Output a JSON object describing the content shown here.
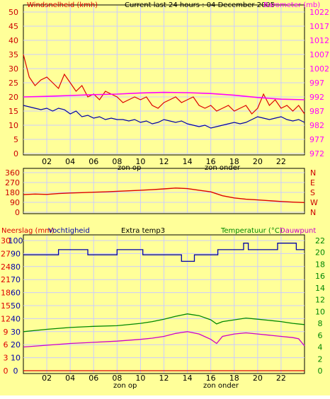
{
  "header": {
    "left_label": "Windsnelheid (kmh)",
    "center_label": "Current last 24 hours : 04 December 2005",
    "right_label": "Barometer (mb)"
  },
  "footer": {
    "zon_op": "zon op",
    "zon_onder": "zon onder"
  },
  "colors": {
    "background": "#ffff99",
    "grid": "#ccccff",
    "red": "#dd0000",
    "blue": "#0000aa",
    "magenta": "#ff00ff",
    "green": "#008800",
    "purple": "#cc00cc"
  },
  "chart_data": [
    {
      "id": "wind_barometer",
      "type": "line",
      "x": {
        "ticks": [
          "02",
          "04",
          "06",
          "08",
          "10",
          "12",
          "14",
          "16",
          "18",
          "20",
          "22"
        ],
        "range_hours": [
          0,
          24
        ]
      },
      "left_axis": {
        "label": "Windsnelheid (kmh)",
        "ticks": [
          0,
          5,
          10,
          15,
          20,
          25,
          30,
          35,
          40,
          45,
          50
        ],
        "range": [
          0,
          50
        ]
      },
      "right_axis": {
        "label": "Barometer (mb)",
        "ticks": [
          972,
          977,
          982,
          987,
          992,
          997,
          1002,
          1007,
          1012,
          1017,
          1022
        ],
        "range": [
          972,
          1022
        ]
      },
      "series": [
        {
          "color": "#dd0000",
          "axis": "left",
          "x": [
            0.0,
            0.5,
            1.0,
            1.5,
            2.0,
            2.5,
            3.0,
            3.5,
            4.0,
            4.5,
            5.0,
            5.5,
            6.0,
            6.5,
            7.0,
            7.5,
            8.0,
            8.5,
            9.0,
            9.5,
            10.0,
            10.5,
            11.0,
            11.5,
            12.0,
            12.5,
            13.0,
            13.5,
            14.0,
            14.5,
            15.0,
            15.5,
            16.0,
            16.5,
            17.0,
            17.5,
            18.0,
            18.5,
            19.0,
            19.5,
            20.0,
            20.5,
            21.0,
            21.5,
            22.0,
            22.5,
            23.0,
            23.5,
            24.0
          ],
          "values": [
            35,
            27,
            24,
            26,
            27,
            25,
            23,
            28,
            25,
            22,
            24,
            20,
            21,
            19,
            22,
            21,
            20,
            18,
            19,
            20,
            19,
            20,
            17,
            16,
            18,
            19,
            20,
            18,
            19,
            20,
            17,
            16,
            17,
            15,
            16,
            17,
            15,
            16,
            17,
            14,
            16,
            21,
            17,
            19,
            16,
            17,
            15,
            17,
            14
          ]
        },
        {
          "color": "#0000aa",
          "axis": "left",
          "x": [
            0.0,
            0.5,
            1.0,
            1.5,
            2.0,
            2.5,
            3.0,
            3.5,
            4.0,
            4.5,
            5.0,
            5.5,
            6.0,
            6.5,
            7.0,
            7.5,
            8.0,
            8.5,
            9.0,
            9.5,
            10.0,
            10.5,
            11.0,
            11.5,
            12.0,
            12.5,
            13.0,
            13.5,
            14.0,
            14.5,
            15.0,
            15.5,
            16.0,
            16.5,
            17.0,
            17.5,
            18.0,
            18.5,
            19.0,
            19.5,
            20.0,
            20.5,
            21.0,
            21.5,
            22.0,
            22.5,
            23.0,
            23.5,
            24.0
          ],
          "values": [
            17,
            16.5,
            16,
            15.5,
            16,
            15,
            16,
            15.5,
            14,
            15,
            13,
            13.5,
            12.5,
            13,
            12,
            12.5,
            12,
            12,
            11.5,
            12,
            11,
            11.5,
            10.5,
            11,
            12,
            11.5,
            11,
            11.5,
            10.5,
            10,
            9.5,
            10,
            9,
            9.5,
            10,
            10.5,
            11,
            10.5,
            11,
            12,
            13,
            12.5,
            12,
            12.5,
            13,
            12,
            11.5,
            12,
            11
          ]
        },
        {
          "color": "#ff00ff",
          "axis": "right",
          "x": [
            0,
            2,
            4,
            6,
            8,
            10,
            12,
            14,
            16,
            18,
            20,
            22,
            24
          ],
          "values": [
            992,
            992.2,
            992.5,
            992.8,
            993,
            993.4,
            993.6,
            993.5,
            993.2,
            992.6,
            991.8,
            991.2,
            991
          ]
        }
      ]
    },
    {
      "id": "wind_direction",
      "type": "scatter",
      "x": {
        "range_hours": [
          0,
          24
        ]
      },
      "left_axis": {
        "ticks": [
          0,
          90,
          180,
          270,
          360
        ],
        "range": [
          0,
          360
        ]
      },
      "right_axis": {
        "ticks": [
          "N",
          "W",
          "S",
          "E",
          "N"
        ]
      },
      "series": [
        {
          "color": "#dd0000",
          "x": [
            0,
            1,
            2,
            3,
            4,
            5,
            6,
            7,
            8,
            9,
            10,
            11,
            12,
            13,
            14,
            15,
            16,
            17,
            18,
            19,
            20,
            21,
            22,
            23,
            24
          ],
          "values": [
            160,
            165,
            162,
            170,
            175,
            178,
            182,
            185,
            190,
            195,
            200,
            205,
            212,
            220,
            215,
            200,
            185,
            150,
            130,
            118,
            112,
            105,
            98,
            92,
            88
          ]
        }
      ]
    },
    {
      "id": "humidity_temperature",
      "type": "line",
      "header": {
        "left1": "Neerslag (mm)",
        "left2": "Vochtigheid",
        "center": "Extra temp3",
        "right1": "Temperatuur (°C)",
        "right2": "Dauwpunt"
      },
      "x": {
        "ticks": [
          "02",
          "04",
          "06",
          "08",
          "10",
          "12",
          "14",
          "16",
          "18",
          "20",
          "22"
        ],
        "range_hours": [
          0,
          24
        ]
      },
      "left_axis_rain": {
        "ticks": [
          0,
          3,
          6,
          9,
          12,
          15,
          18,
          21,
          24,
          27,
          30
        ],
        "range": [
          0,
          30
        ]
      },
      "left_axis_humidity": {
        "ticks": [
          0,
          10,
          20,
          30,
          40,
          50,
          60,
          70,
          80,
          90,
          100
        ],
        "range": [
          0,
          100
        ]
      },
      "right_axis": {
        "ticks": [
          0,
          2,
          4,
          6,
          8,
          10,
          12,
          14,
          16,
          18,
          20,
          22
        ],
        "range": [
          0,
          22
        ]
      },
      "series": [
        {
          "color": "#0000aa",
          "x": [
            0,
            3,
            3,
            5.5,
            5.5,
            8,
            8,
            10.2,
            10.2,
            13.5,
            13.5,
            14.6,
            14.6,
            16.6,
            16.6,
            18.8,
            18.8,
            19.2,
            19.2,
            21.7,
            21.7,
            23.3,
            23.3,
            24
          ],
          "values": [
            89,
            89,
            93,
            93,
            89,
            89,
            93,
            93,
            89,
            89,
            84,
            84,
            89,
            89,
            93,
            93,
            98,
            98,
            93,
            93,
            98,
            98,
            93,
            93
          ]
        },
        {
          "color": "#008800",
          "x": [
            0,
            2,
            4,
            6,
            8,
            10,
            11,
            12,
            13,
            14,
            15,
            16,
            16.5,
            17,
            18,
            19,
            20,
            21,
            22,
            23,
            24
          ],
          "values": [
            6.6,
            7.0,
            7.3,
            7.5,
            7.6,
            8.0,
            8.3,
            8.7,
            9.2,
            9.6,
            9.3,
            8.6,
            7.9,
            8.3,
            8.6,
            8.9,
            8.7,
            8.5,
            8.3,
            8.0,
            7.8
          ]
        },
        {
          "color": "#cc00cc",
          "x": [
            0,
            2,
            4,
            6,
            8,
            10,
            11,
            12,
            13,
            14,
            15,
            16,
            16.5,
            17,
            18,
            19,
            20,
            21,
            22,
            23,
            23.5,
            24
          ],
          "values": [
            4.0,
            4.3,
            4.6,
            4.8,
            5.0,
            5.3,
            5.5,
            5.8,
            6.3,
            6.6,
            6.2,
            5.3,
            4.6,
            5.8,
            6.2,
            6.4,
            6.2,
            6.0,
            5.8,
            5.6,
            5.4,
            4.2
          ]
        },
        {
          "color": "#dd0000",
          "x": [
            0,
            24
          ],
          "values": [
            0,
            0
          ]
        }
      ]
    }
  ]
}
